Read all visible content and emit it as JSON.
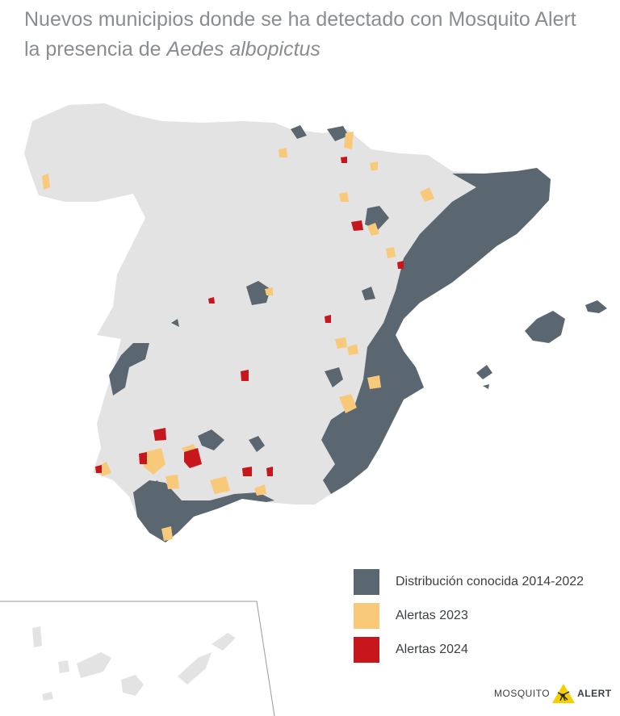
{
  "title": {
    "line1": "Nuevos municipios donde se ha detectado con Mosquito Alert",
    "line2_prefix": "la presencia de ",
    "line2_species": "Aedes albopictus"
  },
  "legend": {
    "items": [
      {
        "label": "Distribución conocida 2014-2022",
        "color": "#5b6770"
      },
      {
        "label": "Alertas 2023",
        "color": "#f9c97a"
      },
      {
        "label": "Alertas 2024",
        "color": "#c8161d"
      }
    ]
  },
  "logo": {
    "word1": "MOSQUITO",
    "word2": "ALERT",
    "icon": "mosquito-warning-icon",
    "accent": "#f5d000"
  },
  "colors": {
    "land": "#e3e3e3",
    "known": "#5b6770",
    "alert2023": "#f9c97a",
    "alert2024": "#c8161d",
    "inset_border": "#9a9a9a"
  }
}
